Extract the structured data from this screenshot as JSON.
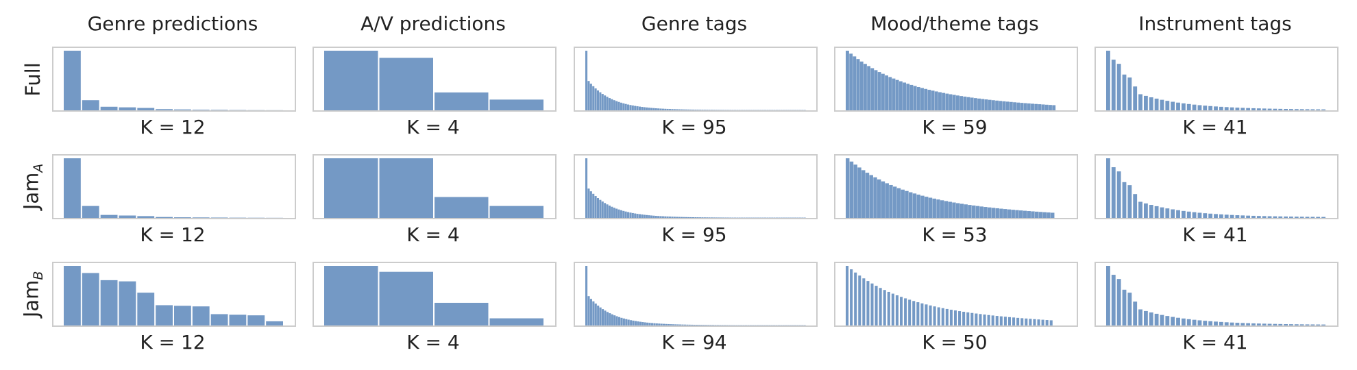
{
  "chart_data": {
    "type": "bar",
    "columns": [
      "Genre predictions",
      "A/V predictions",
      "Genre tags",
      "Mood/theme tags",
      "Instrument tags"
    ],
    "rows": [
      {
        "name": "Full",
        "sub": ""
      },
      {
        "name": "Jam",
        "sub": "A"
      },
      {
        "name": "Jam",
        "sub": "B"
      }
    ],
    "bar_color": "#7499c5",
    "frame_color": "#cccccc",
    "panels": [
      [
        {
          "k_label": "K = 12",
          "bins": 12,
          "xmax": 12,
          "profile": [
            1,
            0.17,
            0.06,
            0.05,
            0.04,
            0.02,
            0.015,
            0.01,
            0.008,
            0.005,
            0.003,
            0.002
          ]
        },
        {
          "k_label": "K = 4",
          "bins": 4,
          "xmax": 4,
          "profile": [
            1,
            0.88,
            0.3,
            0.18
          ]
        },
        {
          "k_label": "K = 95",
          "bins": 95,
          "xmax": 95,
          "kind": "genre_tags"
        },
        {
          "k_label": "K = 59",
          "bins": 59,
          "xmax": 62,
          "kind": "mood"
        },
        {
          "k_label": "K = 41",
          "bins": 41,
          "xmax": 41,
          "kind": "instrument"
        }
      ],
      [
        {
          "k_label": "K = 12",
          "bins": 12,
          "xmax": 12,
          "profile": [
            1,
            0.2,
            0.05,
            0.04,
            0.03,
            0.015,
            0.01,
            0.008,
            0.006,
            0.004,
            0.003,
            0.002
          ]
        },
        {
          "k_label": "K = 4",
          "bins": 4,
          "xmax": 4,
          "profile": [
            1,
            1,
            0.35,
            0.2
          ]
        },
        {
          "k_label": "K = 95",
          "bins": 95,
          "xmax": 95,
          "kind": "genre_tags"
        },
        {
          "k_label": "K = 53",
          "bins": 53,
          "xmax": 56,
          "kind": "mood"
        },
        {
          "k_label": "K = 41",
          "bins": 41,
          "xmax": 41,
          "kind": "instrument"
        }
      ],
      [
        {
          "k_label": "K = 12",
          "bins": 12,
          "xmax": 12,
          "profile": [
            1,
            0.88,
            0.76,
            0.74,
            0.55,
            0.34,
            0.33,
            0.32,
            0.19,
            0.18,
            0.17,
            0.07
          ]
        },
        {
          "k_label": "K = 4",
          "bins": 4,
          "xmax": 4,
          "profile": [
            1,
            0.9,
            0.38,
            0.12
          ]
        },
        {
          "k_label": "K = 94",
          "bins": 94,
          "xmax": 94,
          "kind": "genre_tags"
        },
        {
          "k_label": "K = 50",
          "bins": 50,
          "xmax": 53,
          "kind": "mood"
        },
        {
          "k_label": "K = 41",
          "bins": 41,
          "xmax": 41,
          "kind": "instrument"
        }
      ]
    ]
  }
}
